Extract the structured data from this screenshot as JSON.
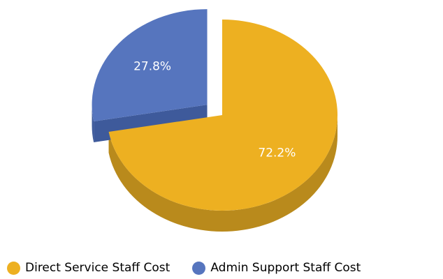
{
  "chart_data": {
    "type": "pie",
    "style": "3d",
    "title": "",
    "slices": [
      {
        "name": "Direct Service Staff Cost",
        "value": 72.2,
        "label": "72.2%",
        "color": "#EDB021",
        "side_color": "#B98A1C",
        "exploded": false
      },
      {
        "name": "Admin Support Staff Cost",
        "value": 27.8,
        "label": "27.8%",
        "color": "#5675BE",
        "side_color": "#3E5A9B",
        "exploded": true
      }
    ],
    "legend": {
      "position": "bottom-left",
      "items": [
        "Direct Service Staff Cost",
        "Admin Support Staff Cost"
      ]
    }
  }
}
